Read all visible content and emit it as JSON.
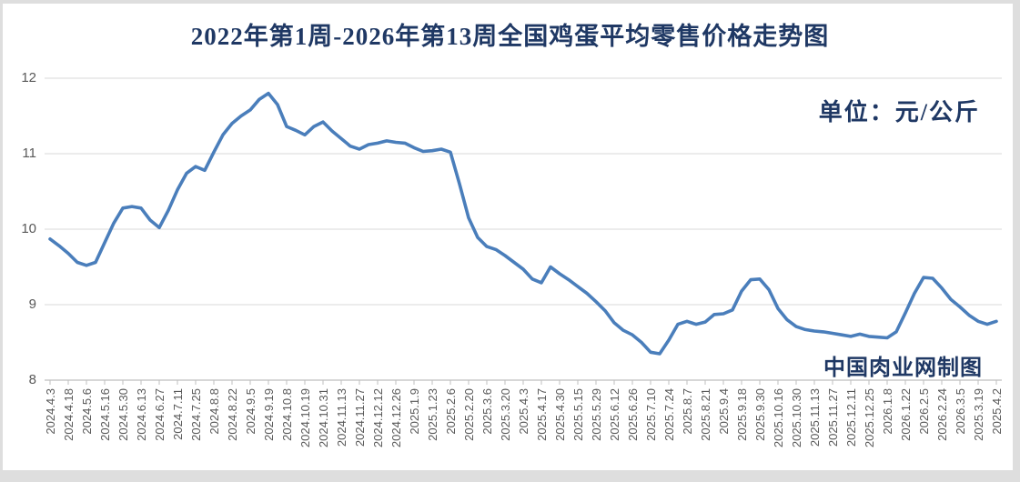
{
  "chart_data": {
    "type": "line",
    "title": "2022年第1周-2026年第13周全国鸡蛋平均零售价格走势图",
    "unit_label": "单位：元/公斤",
    "watermark": "中国肉业网制图",
    "xlabel": "",
    "ylabel": "",
    "ylim": [
      8,
      12
    ],
    "yticks": [
      8,
      9,
      10,
      11,
      12
    ],
    "grid": "horizontal-only",
    "legend": "none",
    "line_color": "#4a7ebb",
    "title_color": "#1f3864",
    "axis_text_color": "#595959",
    "gridline_color": "#d9d9d9",
    "axis_line_color": "#bfbfbf",
    "categories": [
      "2024.4.3",
      "2024.4.18",
      "2024.5.6",
      "2024.5.16",
      "2024.5.30",
      "2024.6.13",
      "2024.6.27",
      "2024.7.11",
      "2024.7.25",
      "2024.8.8",
      "2024.8.22",
      "2024.9.5",
      "2024.9.19",
      "2024.10.8",
      "2024.10.19",
      "2024.10.31",
      "2024.11.13",
      "2024.11.27",
      "2024.12.12",
      "2024.12.26",
      "2025.1.9",
      "2025.1.23",
      "2025.2.6",
      "2025.2.20",
      "2025.3.6",
      "2025.3.20",
      "2025.4.3",
      "2025.4.17",
      "2025.4.30",
      "2025.5.15",
      "2025.5.29",
      "2025.6.12",
      "2025.6.26",
      "2025.7.10",
      "2025.7.24",
      "2025.8.7",
      "2025.8.21",
      "2025.9.4",
      "2025.9.18",
      "2025.9.30",
      "2025.10.16",
      "2025.10.30",
      "2025.11.13",
      "2025.11.27",
      "2025.12.11",
      "2025.12.25",
      "2026.1.8",
      "2026.1.22",
      "2026.2.5",
      "2026.2.24",
      "2026.3.5",
      "2025.3.19",
      "2025.4.2"
    ],
    "points_per_category_gap": 2,
    "values": [
      9.87,
      9.78,
      9.68,
      9.56,
      9.52,
      9.56,
      9.82,
      10.08,
      10.28,
      10.3,
      10.28,
      10.12,
      10.02,
      10.25,
      10.52,
      10.74,
      10.83,
      10.78,
      11.02,
      11.25,
      11.4,
      11.5,
      11.58,
      11.72,
      11.8,
      11.65,
      11.36,
      11.31,
      11.25,
      11.36,
      11.42,
      11.3,
      11.2,
      11.1,
      11.06,
      11.12,
      11.14,
      11.17,
      11.15,
      11.14,
      11.08,
      11.03,
      11.04,
      11.06,
      11.02,
      10.6,
      10.15,
      9.89,
      9.77,
      9.73,
      9.65,
      9.56,
      9.47,
      9.34,
      9.29,
      9.5,
      9.41,
      9.33,
      9.24,
      9.15,
      9.04,
      8.92,
      8.76,
      8.66,
      8.6,
      8.5,
      8.37,
      8.35,
      8.53,
      8.74,
      8.78,
      8.74,
      8.77,
      8.87,
      8.88,
      8.93,
      9.18,
      9.33,
      9.34,
      9.2,
      8.95,
      8.8,
      8.71,
      8.67,
      8.65,
      8.64,
      8.62,
      8.6,
      8.58,
      8.61,
      8.58,
      8.57,
      8.56,
      8.64,
      8.89,
      9.15,
      9.36,
      9.35,
      9.22,
      9.07,
      8.97,
      8.86,
      8.78,
      8.74,
      8.78
    ]
  }
}
